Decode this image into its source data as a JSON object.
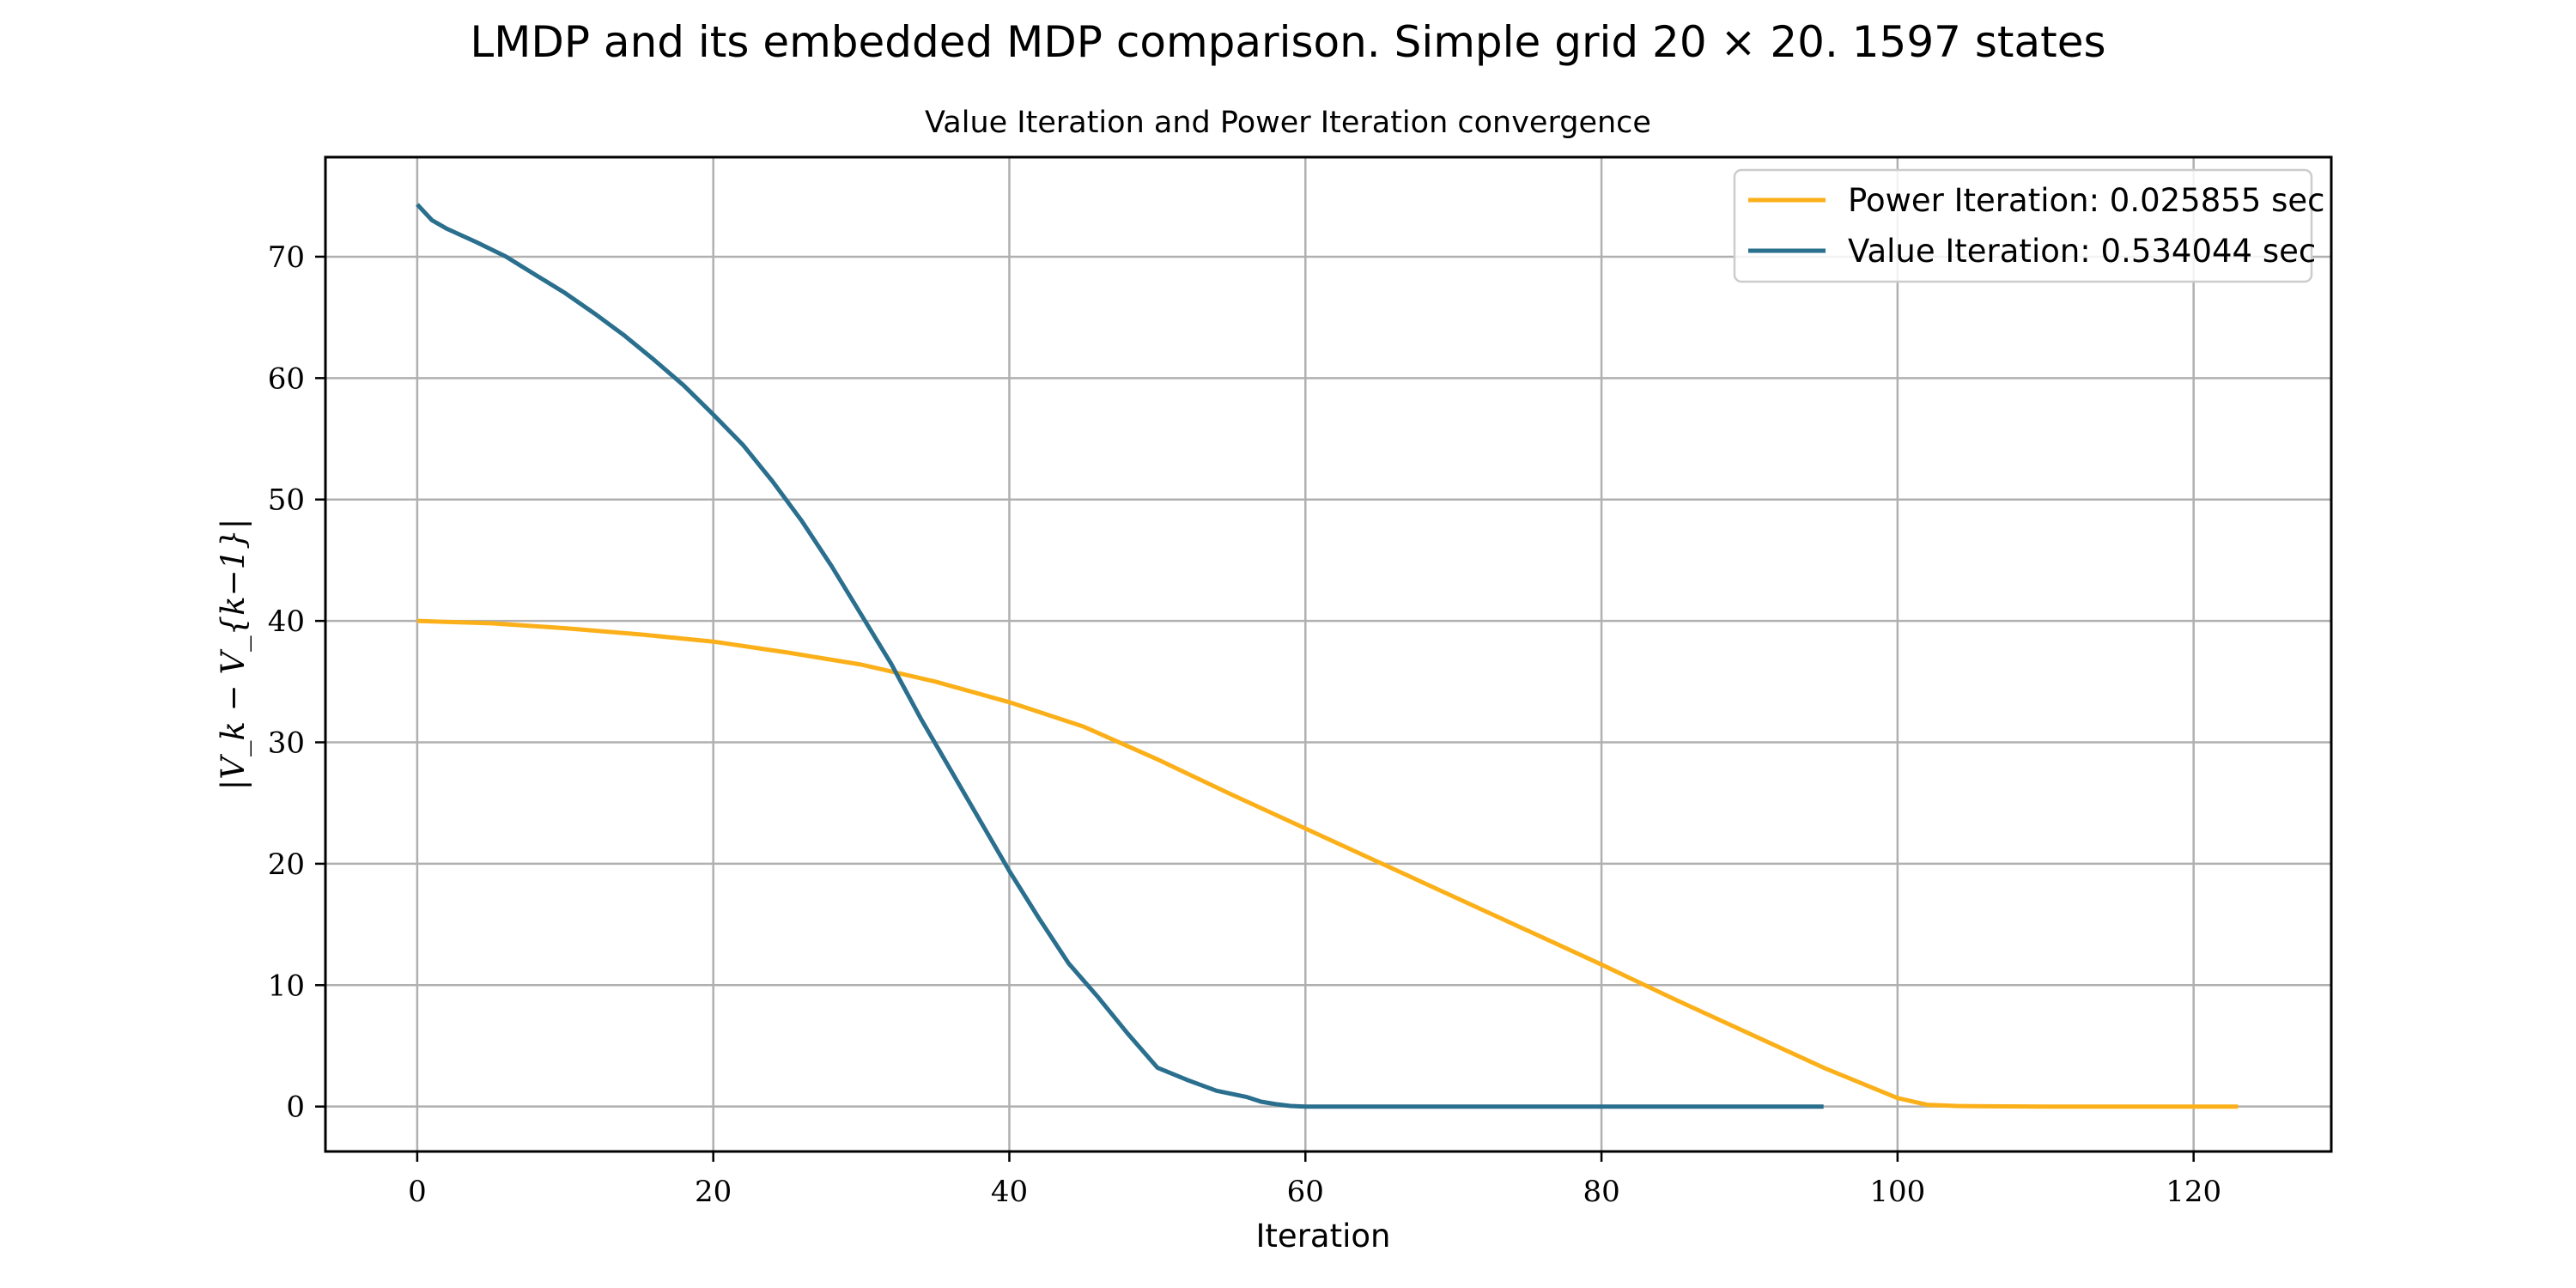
{
  "figure": {
    "suptitle": "LMDP and its embedded MDP comparison. Simple grid 20 × 20. 1597 states"
  },
  "chart_data": {
    "type": "line",
    "title": "Value Iteration and Power Iteration convergence",
    "xlabel": "Iteration",
    "ylabel": "|V_k − V_{k−1}|",
    "xlim": [
      -6.2,
      129.3
    ],
    "ylim": [
      -3.7,
      78.2
    ],
    "xticks": [
      0,
      20,
      40,
      60,
      80,
      100,
      120
    ],
    "yticks": [
      0,
      10,
      20,
      30,
      40,
      50,
      60,
      70
    ],
    "grid": true,
    "legend_position": "top-right",
    "series": [
      {
        "name": "Power Iteration: 0.025855 sec",
        "color": "#fbb01a",
        "x": [
          0,
          5,
          10,
          15,
          20,
          25,
          30,
          35,
          40,
          45,
          50,
          55,
          60,
          65,
          70,
          75,
          80,
          85,
          90,
          95,
          100,
          102,
          104,
          106,
          110,
          115,
          120,
          123
        ],
        "y": [
          40.0,
          39.8,
          39.4,
          38.9,
          38.3,
          37.4,
          36.4,
          35.0,
          33.3,
          31.3,
          28.6,
          25.7,
          22.9,
          20.1,
          17.3,
          14.5,
          11.7,
          8.8,
          6.0,
          3.2,
          0.7,
          0.15,
          0.05,
          0.02,
          0.0,
          0.0,
          0.0,
          0.0
        ]
      },
      {
        "name": "Value Iteration: 0.534044 sec",
        "color": "#2a6f8e",
        "x": [
          0,
          1,
          2,
          4,
          6,
          8,
          10,
          12,
          14,
          16,
          18,
          20,
          22,
          24,
          26,
          28,
          30,
          32,
          34,
          36,
          38,
          40,
          42,
          44,
          46,
          48,
          50,
          52,
          54,
          56,
          57,
          58,
          59,
          60,
          61,
          62,
          64,
          66,
          70,
          80,
          90,
          95
        ],
        "y": [
          74.3,
          73.0,
          72.3,
          71.2,
          70.0,
          68.5,
          67.0,
          65.3,
          63.5,
          61.5,
          59.4,
          57.0,
          54.5,
          51.5,
          48.2,
          44.5,
          40.5,
          36.5,
          32.0,
          27.8,
          23.6,
          19.4,
          15.5,
          11.8,
          9.0,
          6.0,
          3.2,
          2.2,
          1.3,
          0.8,
          0.4,
          0.2,
          0.05,
          0.0,
          0.0,
          0.0,
          0.0,
          0.0,
          0.0,
          0.0,
          0.0,
          0.0
        ]
      }
    ]
  }
}
